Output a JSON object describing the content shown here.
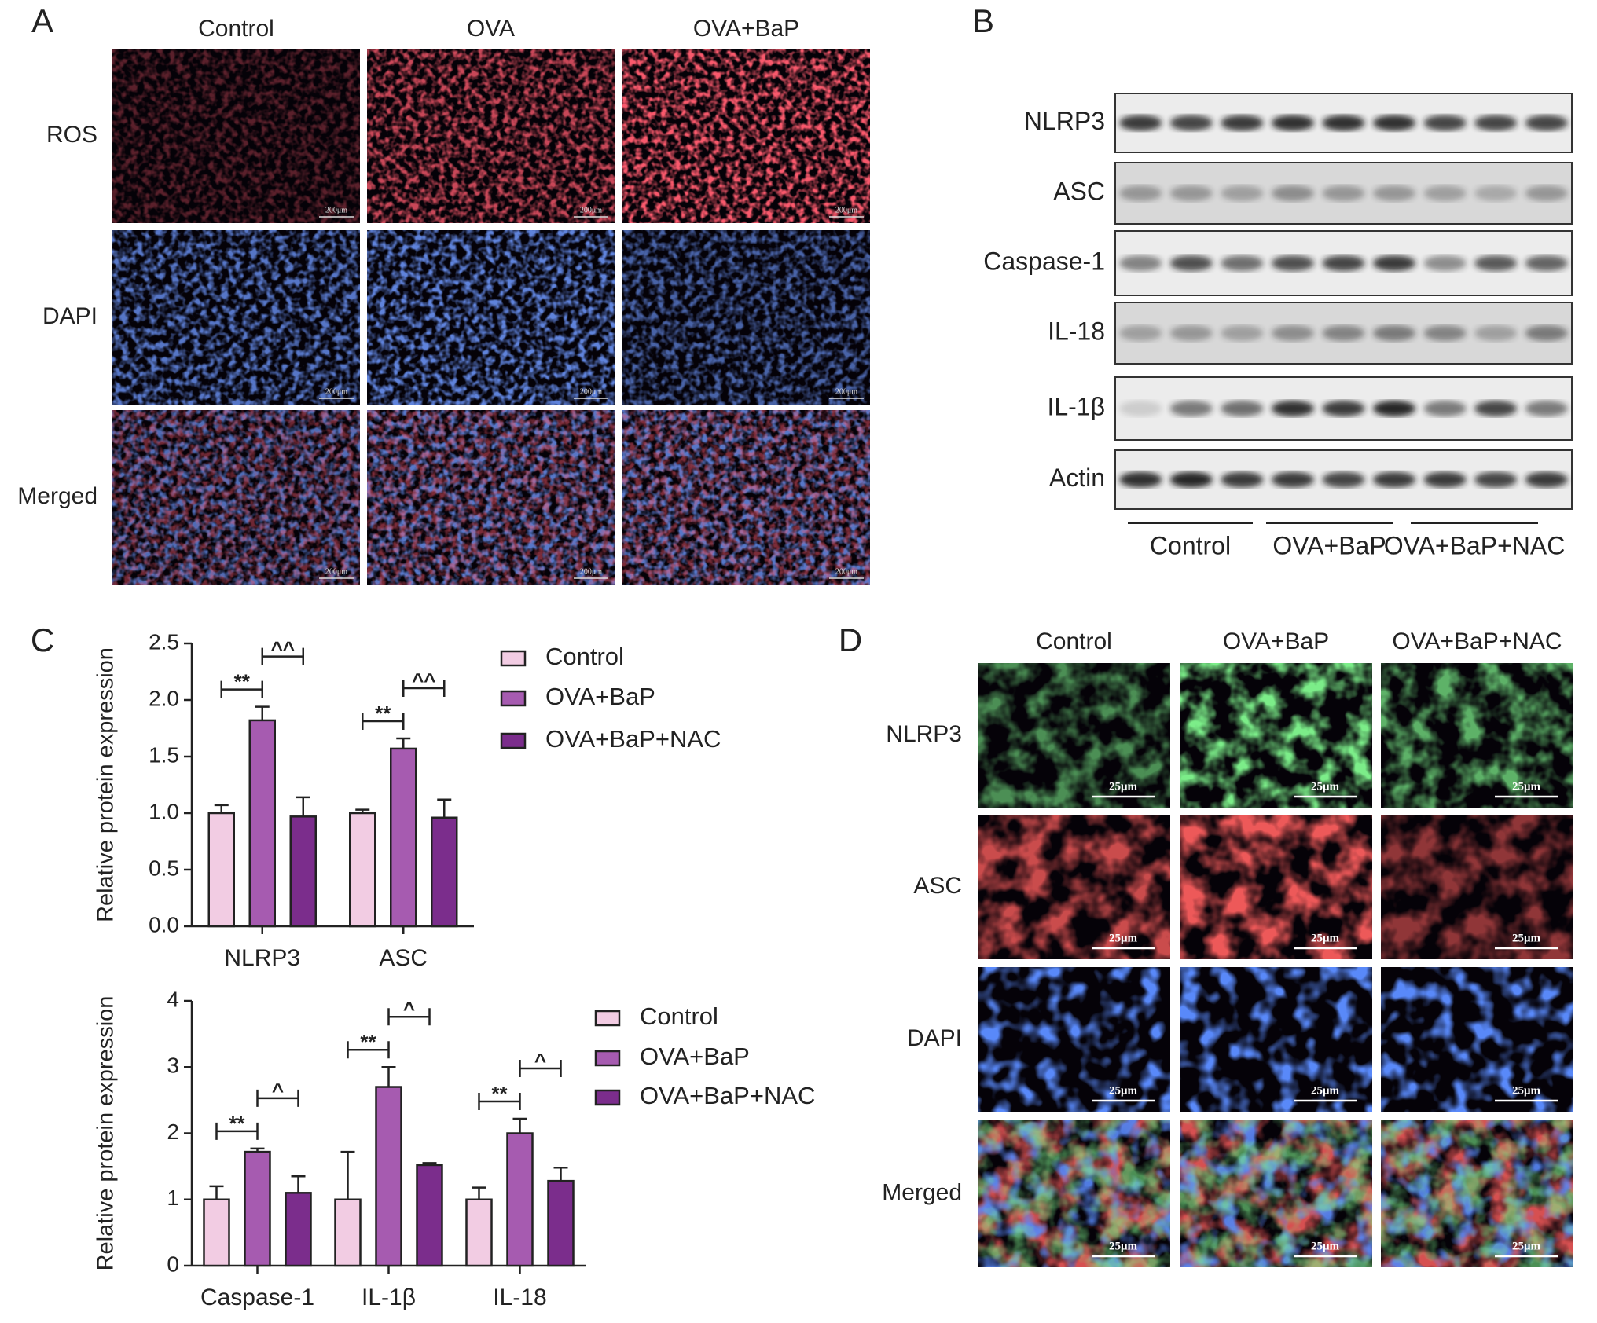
{
  "panel_a": {
    "label": "A",
    "columns": [
      "Control",
      "OVA",
      "OVA+BaP"
    ],
    "rows": [
      "ROS",
      "DAPI",
      "Merged"
    ],
    "scale_bar": "200μm"
  },
  "panel_b": {
    "label": "B",
    "rows": [
      "NLRP3",
      "ASC",
      "Caspase-1",
      "IL-18",
      "IL-1β",
      "Actin"
    ],
    "groups": [
      "Control",
      "OVA+BaP",
      "OVA+BaP+NAC"
    ]
  },
  "panel_c": {
    "label": "C"
  },
  "chart_data": [
    {
      "type": "bar",
      "y_label": "Relative protein expression",
      "categories": [
        "NLRP3",
        "ASC"
      ],
      "series": [
        {
          "name": "Control",
          "color": "#f2cce3",
          "values": [
            1.0,
            1.0
          ],
          "errors": [
            0.07,
            0.03
          ]
        },
        {
          "name": "OVA+BaP",
          "color": "#a65bb0",
          "values": [
            1.82,
            1.57
          ],
          "errors": [
            0.12,
            0.09
          ]
        },
        {
          "name": "OVA+BaP+NAC",
          "color": "#7b2d8c",
          "values": [
            0.97,
            0.96
          ],
          "errors": [
            0.17,
            0.16
          ]
        }
      ],
      "annotations": [
        [
          "**",
          "^^"
        ],
        [
          "**",
          "^^"
        ]
      ],
      "ylim": [
        0,
        2.5
      ],
      "yticks": [
        {
          "value": 0,
          "label": "0.0"
        },
        0.5,
        {
          "value": 1,
          "label": "1.0"
        },
        1.5,
        {
          "value": 2,
          "label": "2.0"
        },
        2.5
      ]
    },
    {
      "type": "bar",
      "y_label": "Relative protein expression",
      "categories": [
        "Caspase-1",
        "IL-1β",
        "IL-18"
      ],
      "series": [
        {
          "name": "Control",
          "color": "#f2cce3",
          "values": [
            1.0,
            1.0,
            1.0
          ],
          "errors": [
            0.2,
            0.72,
            0.18
          ]
        },
        {
          "name": "OVA+BaP",
          "color": "#a65bb0",
          "values": [
            1.72,
            2.7,
            2.0
          ],
          "errors": [
            0.05,
            0.3,
            0.22
          ]
        },
        {
          "name": "OVA+BaP+NAC",
          "color": "#7b2d8c",
          "values": [
            1.1,
            1.52,
            1.28
          ],
          "errors": [
            0.25,
            0.03,
            0.2
          ]
        }
      ],
      "annotations": [
        [
          "**",
          "^"
        ],
        [
          "**",
          "^"
        ],
        [
          "**",
          "^"
        ]
      ],
      "ylim": [
        0,
        4
      ],
      "yticks": [
        0,
        1,
        2,
        3,
        4
      ]
    }
  ],
  "panel_d": {
    "label": "D",
    "columns": [
      "Control",
      "OVA+BaP",
      "OVA+BaP+NAC"
    ],
    "rows": [
      "NLRP3",
      "ASC",
      "DAPI",
      "Merged"
    ],
    "scale_bar": "25μm"
  }
}
